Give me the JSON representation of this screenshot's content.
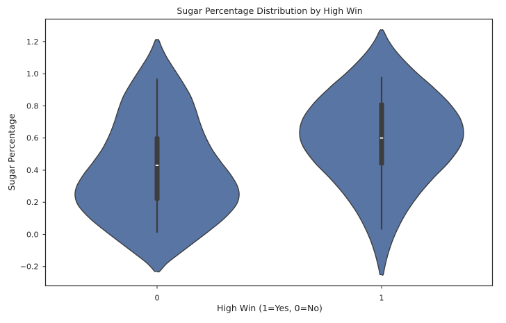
{
  "chart_data": {
    "type": "violin",
    "title": "Sugar Percentage Distribution by High Win",
    "xlabel": "High Win (1=Yes, 0=No)",
    "ylabel": "Sugar Percentage",
    "categories": [
      "0",
      "1"
    ],
    "ylim": [
      -0.32,
      1.34
    ],
    "yticks": [
      -0.2,
      0.0,
      0.2,
      0.4,
      0.6,
      0.8,
      1.0,
      1.2
    ],
    "ytick_labels": [
      "−0.2",
      "0.0",
      "0.2",
      "0.4",
      "0.6",
      "0.8",
      "1.0",
      "1.2"
    ],
    "grid": false,
    "fill_color": "#5875a4",
    "edge_color": "#3d3d3d",
    "box_color": "#3d3d3d",
    "median_color": "#ffffff",
    "violins": [
      {
        "category": "0",
        "extent": [
          -0.23,
          1.21
        ],
        "whisker": [
          0.01,
          0.97
        ],
        "q1": 0.21,
        "median": 0.43,
        "q3": 0.61,
        "density": [
          [
            -0.23,
            0.03
          ],
          [
            -0.18,
            0.12
          ],
          [
            -0.12,
            0.27
          ],
          [
            -0.05,
            0.45
          ],
          [
            0.02,
            0.63
          ],
          [
            0.1,
            0.82
          ],
          [
            0.18,
            0.96
          ],
          [
            0.24,
            1.0
          ],
          [
            0.3,
            0.98
          ],
          [
            0.37,
            0.9
          ],
          [
            0.45,
            0.78
          ],
          [
            0.53,
            0.67
          ],
          [
            0.62,
            0.58
          ],
          [
            0.7,
            0.52
          ],
          [
            0.78,
            0.47
          ],
          [
            0.86,
            0.41
          ],
          [
            0.94,
            0.32
          ],
          [
            1.02,
            0.22
          ],
          [
            1.1,
            0.12
          ],
          [
            1.16,
            0.06
          ],
          [
            1.21,
            0.02
          ]
        ]
      },
      {
        "category": "1",
        "extent": [
          -0.25,
          1.27
        ],
        "whisker": [
          0.03,
          0.98
        ],
        "q1": 0.43,
        "median": 0.6,
        "q3": 0.82,
        "density": [
          [
            -0.25,
            0.02
          ],
          [
            -0.2,
            0.04
          ],
          [
            -0.12,
            0.08
          ],
          [
            -0.03,
            0.14
          ],
          [
            0.06,
            0.22
          ],
          [
            0.15,
            0.32
          ],
          [
            0.25,
            0.46
          ],
          [
            0.35,
            0.63
          ],
          [
            0.45,
            0.82
          ],
          [
            0.55,
            0.96
          ],
          [
            0.63,
            1.0
          ],
          [
            0.72,
            0.96
          ],
          [
            0.82,
            0.82
          ],
          [
            0.92,
            0.62
          ],
          [
            1.0,
            0.44
          ],
          [
            1.08,
            0.28
          ],
          [
            1.15,
            0.16
          ],
          [
            1.21,
            0.08
          ],
          [
            1.27,
            0.02
          ]
        ]
      }
    ]
  }
}
